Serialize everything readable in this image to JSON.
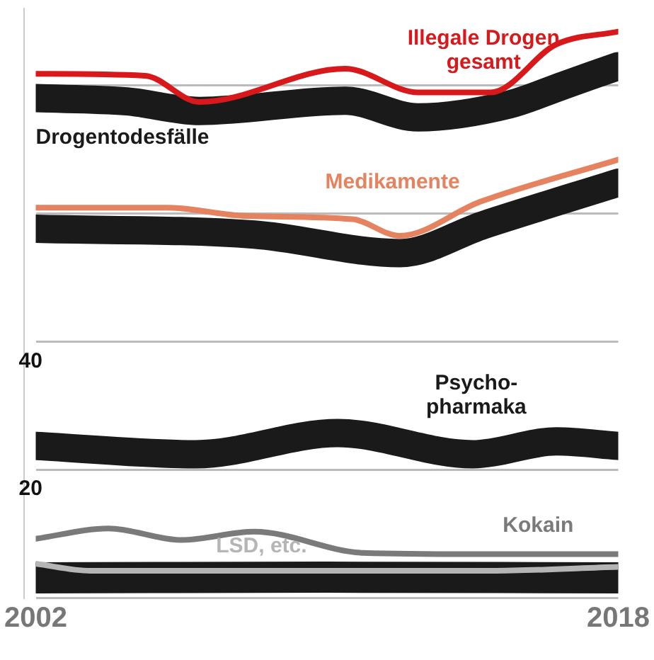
{
  "chart_data": {
    "type": "line",
    "xlim": [
      2002,
      2018
    ],
    "xticks": [
      2002,
      2018
    ],
    "ylim": [
      0,
      92
    ],
    "yticks": [
      {
        "value": 0,
        "label": null
      },
      20,
      40,
      {
        "value": 60,
        "label": null
      },
      {
        "value": 80,
        "label": null
      }
    ],
    "grid": "y",
    "legend": false,
    "marker": "none",
    "line_style": "solid",
    "series": [
      {
        "name": "Illegale Drogen gesamt",
        "color": "#d7191c",
        "x": [
          2002,
          2005,
          2006.5,
          2010.5,
          2012.5,
          2014.5,
          2016.3,
          2018
        ],
        "values": [
          81.8,
          81.5,
          77.4,
          82.6,
          78.9,
          78.9,
          86.4,
          88.4
        ]
      },
      {
        "name": "Drogentodesfälle",
        "color": "#1a1a1a",
        "x": [
          2002,
          2004.5,
          2006.5,
          2010.5,
          2012.5,
          2015,
          2016.5,
          2018
        ],
        "values": [
          78,
          77.5,
          76,
          77.6,
          75,
          77,
          80,
          83
        ]
      },
      {
        "name": "Medikamente",
        "color": "#e5825f",
        "x": [
          2002,
          2005.6,
          2007.8,
          2010.7,
          2012,
          2014.2,
          2018
        ],
        "values": [
          60.9,
          60.9,
          59.6,
          59.1,
          56.5,
          61.8,
          68.4
        ]
      },
      {
        "color": "#1a1a1a",
        "x": [
          2002,
          2008,
          2012,
          2014.3,
          2018
        ],
        "values": [
          57.6,
          56.7,
          53.8,
          58.2,
          64.8
        ]
      },
      {
        "name": "Psycho-pharmaka",
        "color": "#1a1a1a",
        "x": [
          2002,
          2006.4,
          2010.3,
          2014,
          2016.3,
          2018
        ],
        "values": [
          23.7,
          22.4,
          25.7,
          22.4,
          24.4,
          23.7
        ]
      },
      {
        "name": "Kokain",
        "color": "#7a7a7a",
        "x": [
          2002,
          2004,
          2006,
          2008,
          2011,
          2014,
          2018
        ],
        "values": [
          9.2,
          10.8,
          9,
          10.3,
          7,
          6.8,
          6.8
        ]
      },
      {
        "name": "LSD, etc.",
        "color": "#b5b5b5",
        "x": [
          2002,
          2003.5,
          2014.5,
          2018
        ],
        "values": [
          5.3,
          4.2,
          4.2,
          4.8
        ]
      },
      {
        "color": "#1a1a1a",
        "x": [
          2002,
          2010,
          2018
        ],
        "values": [
          3.1,
          3.2,
          3.1
        ]
      }
    ]
  }
}
